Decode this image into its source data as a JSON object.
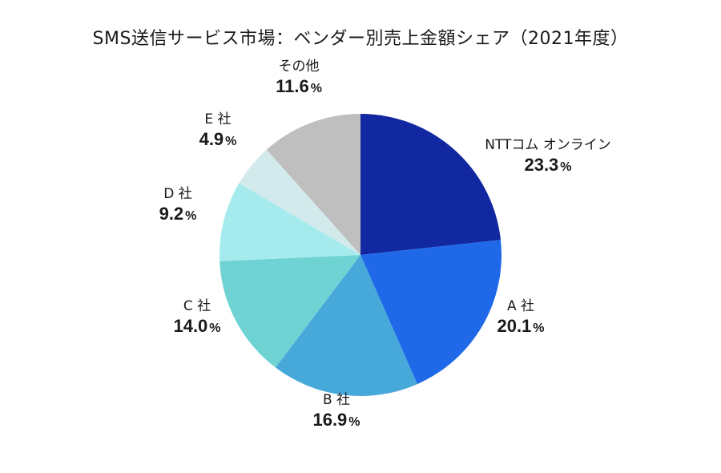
{
  "chart_data": {
    "type": "pie",
    "title": "SMS送信サービス市場：ベンダー別売上金額シェア（2021年度）",
    "start_angle_deg": 0,
    "direction": "clockwise",
    "center": [
      450,
      318
    ],
    "radius": 176,
    "slices": [
      {
        "label": "NTTコム オンライン",
        "value": 23.3,
        "display": "23.3",
        "color": "#1128A0",
        "label_pos": [
          684,
          184
        ]
      },
      {
        "label": "A 社",
        "value": 20.1,
        "display": "20.1",
        "color": "#1F69E8",
        "label_pos": [
          650,
          385
        ]
      },
      {
        "label": "B 社",
        "value": 16.9,
        "display": "16.9",
        "color": "#47A8DA",
        "label_pos": [
          420,
          502
        ]
      },
      {
        "label": "C 社",
        "value": 14.0,
        "display": "14.0",
        "color": "#6FD3D4",
        "label_pos": [
          246,
          385
        ]
      },
      {
        "label": "D 社",
        "value": 9.2,
        "display": "9.2",
        "color": "#A5EBEE",
        "label_pos": [
          222,
          245
        ]
      },
      {
        "label": "E 社",
        "value": 4.9,
        "display": "4.9",
        "color": "#D3EAED",
        "label_pos": [
          272,
          152
        ]
      },
      {
        "label": "その他",
        "value": 11.6,
        "display": "11.6",
        "color": "#BFBFBF",
        "label_pos": [
          373,
          86
        ]
      }
    ],
    "percent_sign": "%",
    "legend": "none (direct labels)"
  }
}
